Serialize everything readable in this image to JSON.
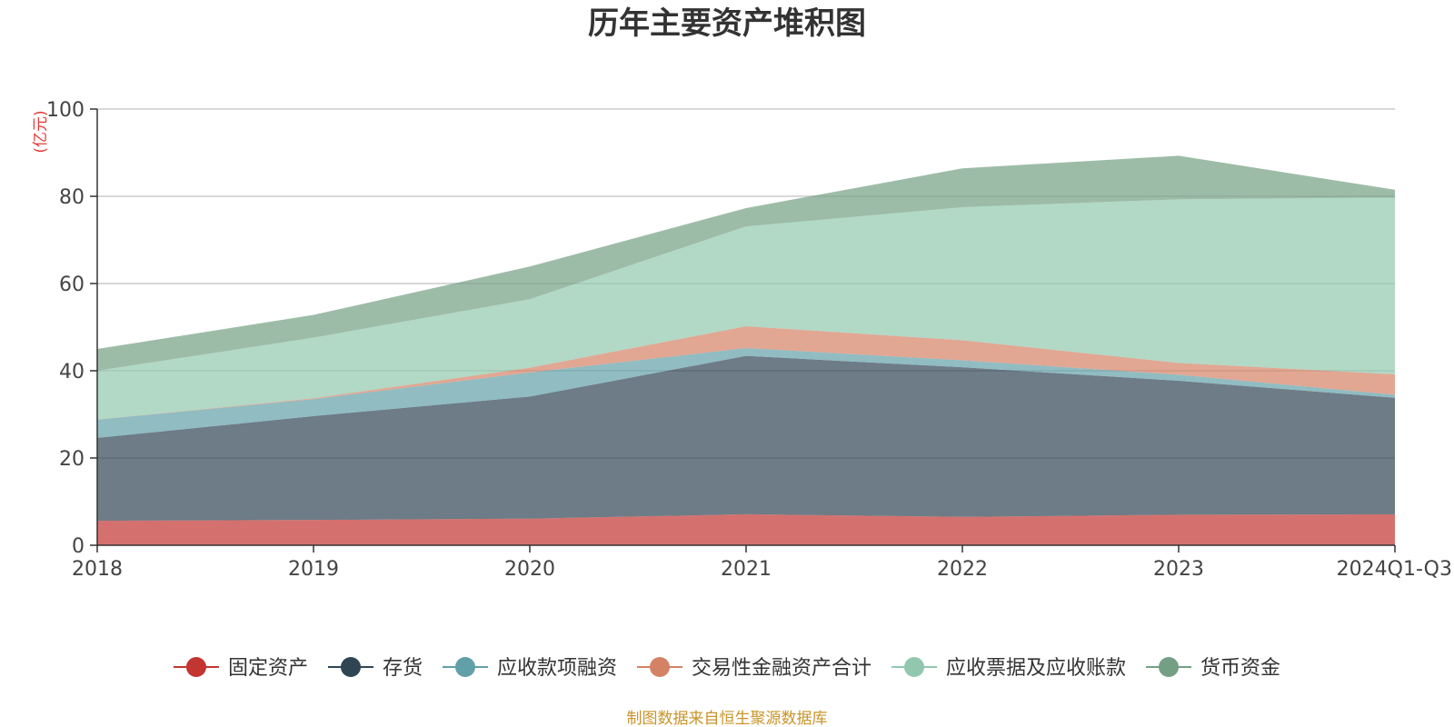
{
  "chart_data": {
    "type": "area",
    "stacked": true,
    "title": "历年主要资产堆积图",
    "unit": "(亿元)",
    "categories": [
      "2018",
      "2019",
      "2020",
      "2021",
      "2022",
      "2023",
      "2024Q1-Q3"
    ],
    "ylim": [
      0,
      100
    ],
    "yticks": [
      "0",
      "20",
      "40",
      "60",
      "80",
      "100"
    ],
    "grid": true,
    "legend_position": "bottom",
    "series": [
      {
        "name": "固定资产",
        "color": "#c23531",
        "values": [
          5.6,
          5.8,
          6.1,
          7.1,
          6.5,
          7.0,
          7.1
        ]
      },
      {
        "name": "存货",
        "color": "#2f4554",
        "values": [
          19.0,
          23.8,
          28.0,
          36.3,
          34.3,
          30.7,
          26.7
        ]
      },
      {
        "name": "应收款项融资",
        "color": "#61a0a8",
        "values": [
          4.2,
          3.9,
          5.5,
          1.8,
          1.6,
          1.4,
          0.7
        ]
      },
      {
        "name": "交易性金融资产合计",
        "color": "#d48265",
        "values": [
          0.0,
          0.2,
          1.1,
          5.0,
          4.6,
          2.7,
          4.7
        ]
      },
      {
        "name": "应收票据及应收账款",
        "color": "#91c7ae",
        "values": [
          11.2,
          13.9,
          15.7,
          22.9,
          30.5,
          37.5,
          40.5
        ]
      },
      {
        "name": "货币资金",
        "color": "#749f83",
        "values": [
          5.0,
          5.2,
          7.5,
          4.2,
          8.9,
          10.0,
          1.8
        ]
      }
    ]
  },
  "footer": "制图数据来自恒生聚源数据库"
}
